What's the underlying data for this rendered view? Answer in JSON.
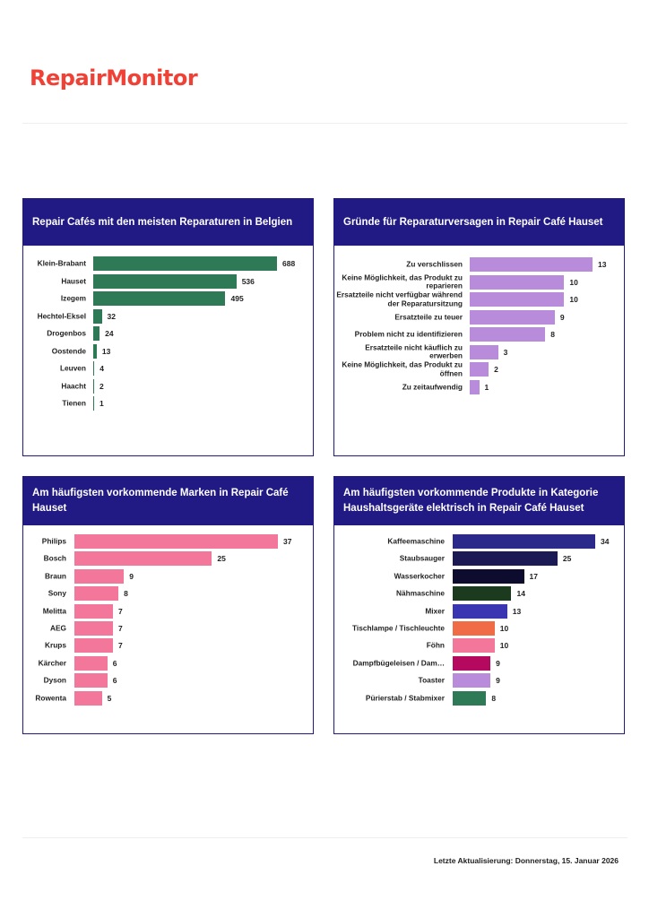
{
  "logo": "RepairMonitor",
  "footer": "Letzte Aktualisierung: Donnerstag, 15. Januar 2026",
  "chart_data": [
    {
      "type": "bar",
      "orientation": "horizontal",
      "title": "Repair Cafés mit den meisten Reparaturen in Belgien",
      "categories": [
        "Klein-Brabant",
        "Hauset",
        "Izegem",
        "Hechtel-Eksel",
        "Drogenbos",
        "Oostende",
        "Leuven",
        "Haacht",
        "Tienen"
      ],
      "values": [
        688,
        536,
        495,
        32,
        24,
        13,
        4,
        2,
        1
      ],
      "colors": [
        "#2e7a57"
      ]
    },
    {
      "type": "bar",
      "orientation": "horizontal",
      "title": "Gründe für Reparaturversagen in Repair Café Hauset",
      "categories": [
        "Zu verschlissen",
        "Keine Möglichkeit, das Produkt zu reparieren",
        "Ersatzteile nicht verfügbar während der Reparatursitzung",
        "Ersatzteile zu teuer",
        "Problem nicht zu identifizieren",
        "Ersatzteile nicht käuflich zu erwerben",
        "Keine Möglichkeit, das Produkt zu öffnen",
        "Zu zeitaufwendig"
      ],
      "values": [
        13,
        10,
        10,
        9,
        8,
        3,
        2,
        1
      ],
      "colors": [
        "#b98bdb"
      ]
    },
    {
      "type": "bar",
      "orientation": "horizontal",
      "title": "Am häufigsten vorkommende Marken in Repair Café Hauset",
      "categories": [
        "Philips",
        "Bosch",
        "Braun",
        "Sony",
        "Melitta",
        "AEG",
        "Krups",
        "Kärcher",
        "Dyson",
        "Rowenta"
      ],
      "values": [
        37,
        25,
        9,
        8,
        7,
        7,
        7,
        6,
        6,
        5
      ],
      "colors": [
        "#f2779b"
      ]
    },
    {
      "type": "bar",
      "orientation": "horizontal",
      "title": "Am häufigsten vorkommende Produkte in Kategorie Haushaltsgeräte elektrisch in Repair Café Hauset",
      "categories": [
        "Kaffeemaschine",
        "Staubsauger",
        "Wasserkocher",
        "Nähmaschine",
        "Mixer",
        "Tischlampe / Tischleuchte",
        "Föhn",
        "Dampfbügeleisen / Dam…",
        "Toaster",
        "Pürierstab / Stabmixer"
      ],
      "values": [
        34,
        25,
        17,
        14,
        13,
        10,
        10,
        9,
        9,
        8
      ],
      "colors": [
        "#2b2a8a",
        "#1c1a55",
        "#0e0c2e",
        "#1c3a1e",
        "#3a35b0",
        "#ef6c47",
        "#f2779b",
        "#b5095f",
        "#b98bdb",
        "#2e7a57"
      ]
    }
  ]
}
